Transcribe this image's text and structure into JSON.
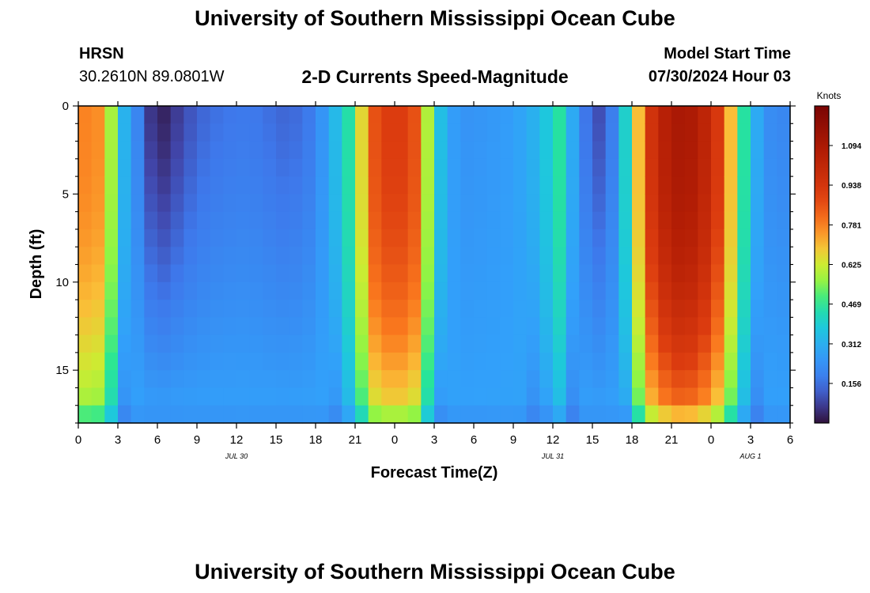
{
  "header": {
    "title": "University of Southern Mississippi Ocean Cube",
    "station": "HRSN",
    "coords": "30.2610N  89.0801W",
    "subtitle": "2-D Currents Speed-Magnitude",
    "model_label": "Model Start Time",
    "model_time": "07/30/2024 Hour 03"
  },
  "footer": {
    "title": "University of Southern Mississippi Ocean Cube"
  },
  "chart_data": {
    "type": "heatmap",
    "title": "2-D Currents Speed-Magnitude",
    "xlabel": "Forecast Time(Z)",
    "ylabel": "Depth (ft)",
    "x_ticks": [
      "0",
      "3",
      "6",
      "9",
      "12",
      "15",
      "18",
      "21",
      "0",
      "3",
      "6",
      "9",
      "12",
      "15",
      "18",
      "21",
      "0",
      "3",
      "6"
    ],
    "x_range_hours": [
      0,
      54
    ],
    "date_labels": [
      {
        "label": "JUL 30",
        "hour": 12
      },
      {
        "label": "JUL 31",
        "hour": 36
      },
      {
        "label": "AUG 1",
        "hour": 51
      }
    ],
    "y_ticks": [
      0,
      5,
      10,
      15
    ],
    "ylim": [
      0,
      18
    ],
    "colorbar": {
      "title": "Knots",
      "ticks": [
        "1.094",
        "0.938",
        "0.781",
        "0.625",
        "0.469",
        "0.312",
        "0.156"
      ],
      "range": [
        0,
        1.25
      ]
    },
    "profile": [
      {
        "t": 0,
        "v": 0.78
      },
      {
        "t": 1.5,
        "v": 0.76
      },
      {
        "t": 2.5,
        "v": 0.58
      },
      {
        "t": 3.5,
        "v": 0.32
      },
      {
        "t": 4.5,
        "v": 0.2
      },
      {
        "t": 5.5,
        "v": 0.06
      },
      {
        "t": 6.5,
        "v": 0.03
      },
      {
        "t": 7.5,
        "v": 0.07
      },
      {
        "t": 9,
        "v": 0.13
      },
      {
        "t": 11,
        "v": 0.16
      },
      {
        "t": 13,
        "v": 0.17
      },
      {
        "t": 14.5,
        "v": 0.15
      },
      {
        "t": 16,
        "v": 0.13
      },
      {
        "t": 17.5,
        "v": 0.17
      },
      {
        "t": 19,
        "v": 0.28
      },
      {
        "t": 20.5,
        "v": 0.45
      },
      {
        "t": 21.5,
        "v": 0.66
      },
      {
        "t": 22.5,
        "v": 0.86
      },
      {
        "t": 24,
        "v": 0.92
      },
      {
        "t": 25.5,
        "v": 0.86
      },
      {
        "t": 26.3,
        "v": 0.66
      },
      {
        "t": 27,
        "v": 0.42
      },
      {
        "t": 28,
        "v": 0.28
      },
      {
        "t": 29.5,
        "v": 0.24
      },
      {
        "t": 31,
        "v": 0.25
      },
      {
        "t": 33,
        "v": 0.27
      },
      {
        "t": 35,
        "v": 0.33
      },
      {
        "t": 36.5,
        "v": 0.46
      },
      {
        "t": 37.5,
        "v": 0.3
      },
      {
        "t": 38.5,
        "v": 0.16
      },
      {
        "t": 39.5,
        "v": 0.1
      },
      {
        "t": 40.5,
        "v": 0.18
      },
      {
        "t": 41.5,
        "v": 0.4
      },
      {
        "t": 42.5,
        "v": 0.7
      },
      {
        "t": 43.5,
        "v": 0.95
      },
      {
        "t": 45,
        "v": 1.1
      },
      {
        "t": 47,
        "v": 1.08
      },
      {
        "t": 48.5,
        "v": 0.92
      },
      {
        "t": 49.5,
        "v": 0.7
      },
      {
        "t": 50.5,
        "v": 0.46
      },
      {
        "t": 51.5,
        "v": 0.3
      },
      {
        "t": 52.5,
        "v": 0.22
      },
      {
        "t": 54,
        "v": 0.2
      }
    ]
  }
}
